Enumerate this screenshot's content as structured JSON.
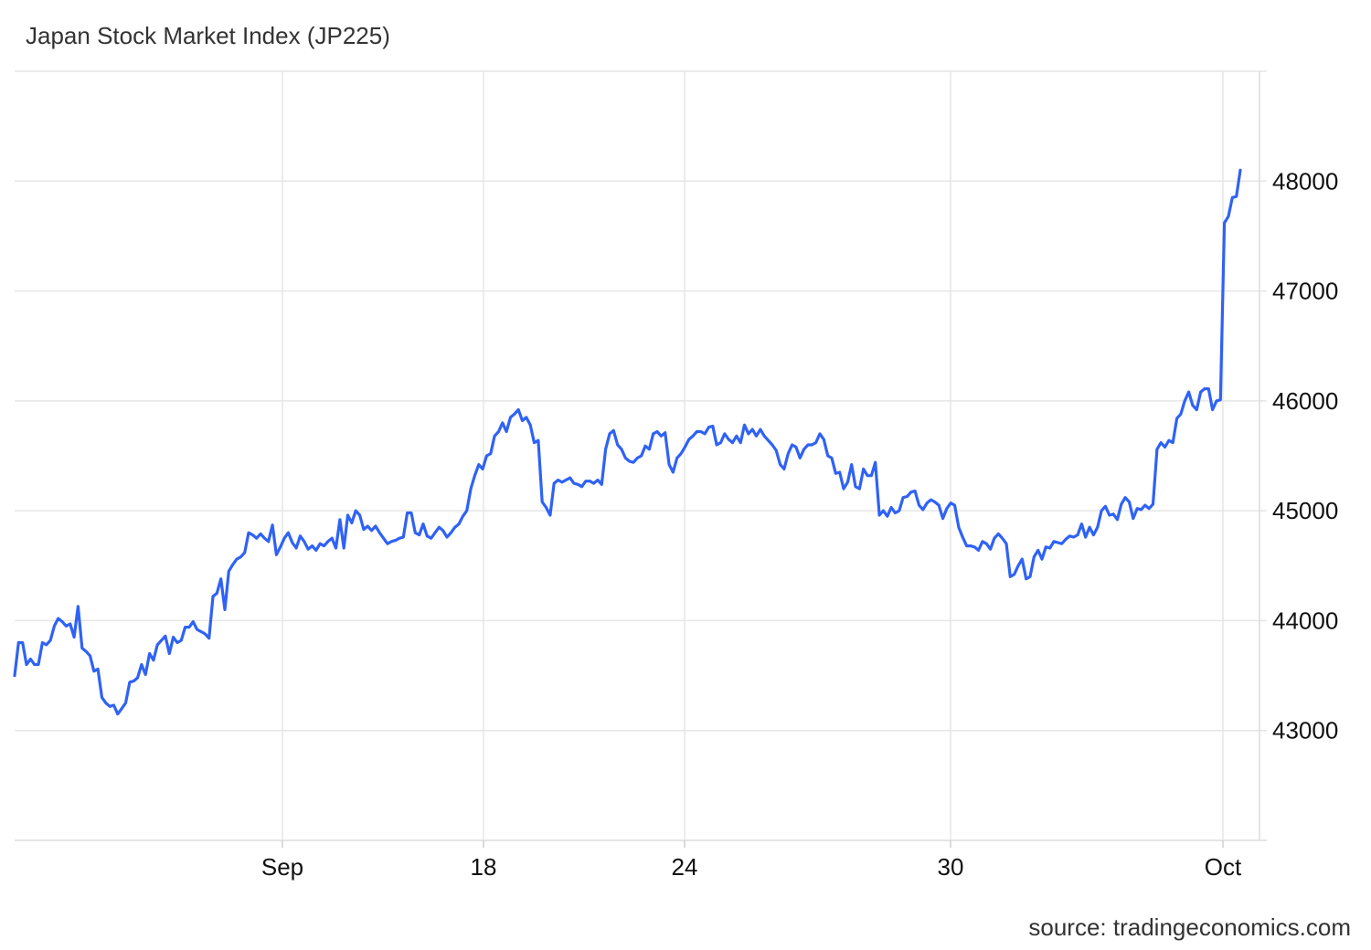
{
  "title": "Japan Stock Market Index (JP225)",
  "source": "source: tradingeconomics.com",
  "chart_data": {
    "type": "line",
    "title": "Japan Stock Market Index (JP225)",
    "xlabel": "",
    "ylabel": "",
    "x_tick_labels": [
      "Sep",
      "18",
      "24",
      "30",
      "Oct"
    ],
    "y_ticks": [
      43000,
      44000,
      45000,
      46000,
      47000,
      48000
    ],
    "ylim": [
      42000,
      49000
    ],
    "grid": true,
    "line_color": "#2f62f5",
    "series": [
      {
        "values": [
          43500,
          43800,
          43800,
          43600,
          43650,
          43600,
          43600,
          43800,
          43780,
          43820,
          43950,
          44020,
          43990,
          43950,
          43970,
          43850,
          44130,
          43750,
          43720,
          43680,
          43540,
          43560,
          43300,
          43250,
          43220,
          43230,
          43150,
          43200,
          43250,
          43440,
          43450,
          43480,
          43600,
          43510,
          43700,
          43640,
          43780,
          43820,
          43860,
          43700,
          43850,
          43800,
          43820,
          43940,
          43940,
          43990,
          43920,
          43900,
          43880,
          43840,
          44220,
          44250,
          44380,
          44100,
          44450,
          44510,
          44560,
          44580,
          44620,
          44800,
          44780,
          44750,
          44790,
          44750,
          44720,
          44870,
          44600,
          44670,
          44750,
          44800,
          44710,
          44660,
          44770,
          44720,
          44650,
          44680,
          44640,
          44700,
          44680,
          44720,
          44750,
          44660,
          44920,
          44660,
          44960,
          44890,
          45000,
          44960,
          44830,
          44860,
          44820,
          44860,
          44800,
          44750,
          44700,
          44720,
          44730,
          44750,
          44760,
          44980,
          44980,
          44800,
          44780,
          44880,
          44770,
          44750,
          44800,
          44850,
          44820,
          44760,
          44800,
          44850,
          44880,
          44950,
          45000,
          45200,
          45320,
          45420,
          45380,
          45500,
          45520,
          45680,
          45720,
          45800,
          45720,
          45850,
          45880,
          45920,
          45820,
          45850,
          45780,
          45620,
          45640,
          45080,
          45030,
          44960,
          45250,
          45280,
          45260,
          45280,
          45300,
          45250,
          45240,
          45220,
          45270,
          45270,
          45250,
          45280,
          45240,
          45560,
          45700,
          45730,
          45600,
          45560,
          45480,
          45450,
          45440,
          45480,
          45500,
          45590,
          45560,
          45700,
          45720,
          45680,
          45710,
          45420,
          45350,
          45480,
          45520,
          45580,
          45650,
          45680,
          45720,
          45720,
          45700,
          45760,
          45770,
          45600,
          45620,
          45700,
          45650,
          45620,
          45680,
          45620,
          45780,
          45700,
          45740,
          45680,
          45740,
          45680,
          45640,
          45600,
          45550,
          45420,
          45380,
          45520,
          45600,
          45580,
          45480,
          45560,
          45600,
          45600,
          45620,
          45700,
          45650,
          45500,
          45480,
          45340,
          45350,
          45200,
          45260,
          45420,
          45220,
          45200,
          45380,
          45320,
          45320,
          45440,
          44960,
          45000,
          44950,
          45030,
          44980,
          45000,
          45120,
          45130,
          45170,
          45180,
          45050,
          45010,
          45070,
          45100,
          45080,
          45050,
          44930,
          45020,
          45070,
          45050,
          44850,
          44760,
          44680,
          44680,
          44670,
          44640,
          44720,
          44700,
          44650,
          44750,
          44790,
          44750,
          44700,
          44400,
          44420,
          44500,
          44560,
          44380,
          44400,
          44580,
          44640,
          44560,
          44670,
          44660,
          44720,
          44710,
          44700,
          44740,
          44770,
          44760,
          44780,
          44880,
          44760,
          44850,
          44780,
          44850,
          45000,
          45040,
          44960,
          44970,
          44920,
          45060,
          45120,
          45080,
          44930,
          45020,
          45010,
          45050,
          45020,
          45060,
          45560,
          45620,
          45580,
          45640,
          45620,
          45840,
          45880,
          46000,
          46080,
          45960,
          45920,
          46080,
          46110,
          46110,
          45920,
          46000,
          46010,
          47620,
          47680,
          47850,
          47860,
          48100
        ]
      }
    ]
  }
}
